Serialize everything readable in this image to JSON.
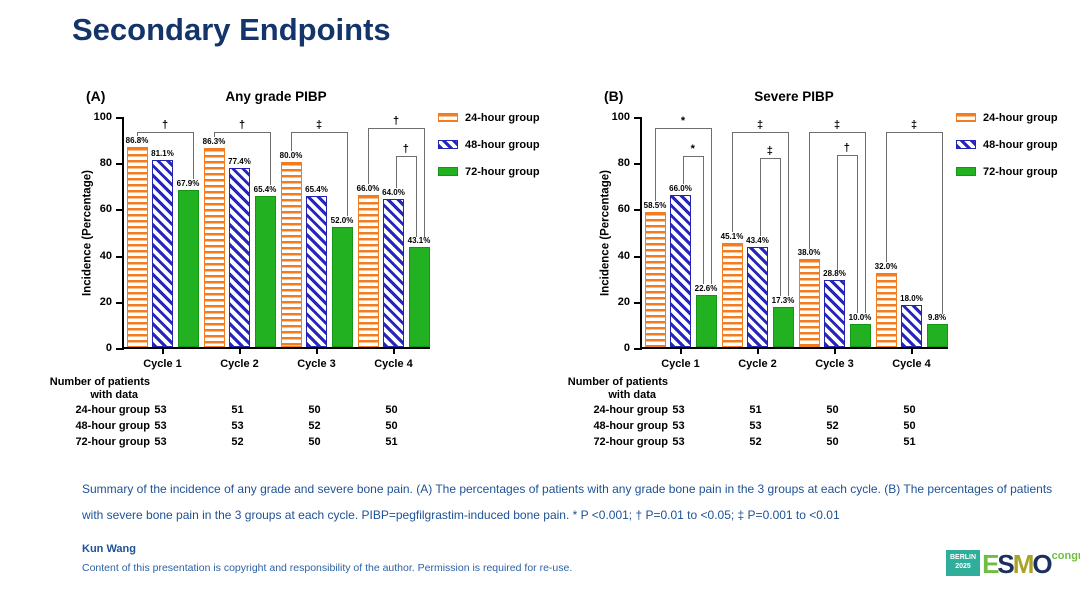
{
  "slide": {
    "title": "Secondary Endpoints",
    "caption": {
      "lines": [
        "Summary of the incidence of any grade and severe bone pain. (A) The percentages of patients with any grade bone pain in the 3 groups at each cycle. (B) The percentages of patients",
        "with severe bone pain in the 3 groups at each cycle. PIBP=pegfilgrastim-induced bone pain. * P <0.001; † P=0.01 to <0.05; ‡ P=0.001 to <0.01"
      ]
    },
    "author": "Kun Wang",
    "copyright": "Content of this presentation is copyright and responsibility of the author. Permission is required for re-use.",
    "logo": {
      "badge_line1": "BERLIN",
      "badge_line2": "2025",
      "brand": "ESMO",
      "suffix": "congress"
    }
  },
  "colors": {
    "title_navy": "#13356b",
    "caption_blue": "#1d5296",
    "group_24h_orange": "#f47c20",
    "group_48h_blue": "#2626bf",
    "group_72h_green": "#21b121",
    "bracket_gray": "#6e6e6e",
    "logo_teal": "#2fae9b",
    "logo_green": "#6fbe44",
    "logo_navy": "#1c2f5e",
    "logo_olive": "#a9a327",
    "brand_letter_colors": [
      "#6fbe44",
      "#1c2f5e",
      "#a9a327",
      "#1c2f5e"
    ]
  },
  "chart_data": [
    {
      "type": "bar",
      "panel_label": "(A)",
      "title": "Any grade PIBP",
      "ylabel": "Incidence (Percentage)",
      "ylim": [
        0,
        100
      ],
      "yticks": [
        0,
        20,
        40,
        60,
        80,
        100
      ],
      "grid": false,
      "legend_position": "right-top",
      "categories": [
        "Cycle 1",
        "Cycle 2",
        "Cycle 3",
        "Cycle 4"
      ],
      "series": [
        {
          "name": "24-hour group",
          "pattern": "orange-horizontal-stripes",
          "values": [
            86.8,
            86.3,
            80.0,
            66.0
          ]
        },
        {
          "name": "48-hour group",
          "pattern": "blue-diagonal-stripes",
          "values": [
            81.1,
            77.4,
            65.4,
            64.0
          ]
        },
        {
          "name": "72-hour group",
          "pattern": "green-solid",
          "values": [
            67.9,
            65.4,
            52.0,
            43.1
          ]
        }
      ],
      "significance": [
        {
          "cycle": 0,
          "from": 0,
          "to": 2,
          "top": 94.0,
          "symbol": "†",
          "inset": false
        },
        {
          "cycle": 1,
          "from": 0,
          "to": 2,
          "top": 94.0,
          "symbol": "†",
          "inset": false
        },
        {
          "cycle": 2,
          "from": 0,
          "to": 2,
          "top": 94.0,
          "symbol": "‡",
          "inset": false
        },
        {
          "cycle": 3,
          "from": 0,
          "to": 2,
          "top": 95.5,
          "symbol": "†",
          "inset": false
        },
        {
          "cycle": 3,
          "from": 1,
          "to": 2,
          "top": 83.5,
          "symbol": "†",
          "inset": true
        }
      ],
      "patients_table": {
        "header_line1": "Number of patients",
        "header_line2": "with data",
        "rows": [
          {
            "label": "24-hour group",
            "values": [
              "53",
              "51",
              "50",
              "50"
            ]
          },
          {
            "label": "48-hour group",
            "values": [
              "53",
              "53",
              "52",
              "50"
            ]
          },
          {
            "label": "72-hour group",
            "values": [
              "53",
              "52",
              "50",
              "51"
            ]
          }
        ]
      }
    },
    {
      "type": "bar",
      "panel_label": "(B)",
      "title": "Severe PIBP",
      "ylabel": "Incidence (Percentage)",
      "ylim": [
        0,
        100
      ],
      "yticks": [
        0,
        20,
        40,
        60,
        80,
        100
      ],
      "grid": false,
      "legend_position": "right-top",
      "categories": [
        "Cycle 1",
        "Cycle 2",
        "Cycle 3",
        "Cycle 4"
      ],
      "series": [
        {
          "name": "24-hour group",
          "pattern": "orange-horizontal-stripes",
          "values": [
            58.5,
            45.1,
            38.0,
            32.0
          ]
        },
        {
          "name": "48-hour group",
          "pattern": "blue-diagonal-stripes",
          "values": [
            66.0,
            43.4,
            28.8,
            18.0
          ]
        },
        {
          "name": "72-hour group",
          "pattern": "green-solid",
          "values": [
            22.6,
            17.3,
            10.0,
            9.8
          ]
        }
      ],
      "significance": [
        {
          "cycle": 0,
          "from": 0,
          "to": 2,
          "top": 95.5,
          "symbol": "*",
          "inset": false
        },
        {
          "cycle": 0,
          "from": 1,
          "to": 2,
          "top": 83.5,
          "symbol": "*",
          "inset": true
        },
        {
          "cycle": 1,
          "from": 0,
          "to": 2,
          "top": 94.0,
          "symbol": "‡",
          "inset": false
        },
        {
          "cycle": 1,
          "from": 1,
          "to": 2,
          "top": 82.5,
          "symbol": "‡",
          "inset": true
        },
        {
          "cycle": 2,
          "from": 0,
          "to": 2,
          "top": 94.0,
          "symbol": "‡",
          "inset": false
        },
        {
          "cycle": 2,
          "from": 1,
          "to": 2,
          "top": 84.0,
          "symbol": "†",
          "inset": true
        },
        {
          "cycle": 3,
          "from": 0,
          "to": 2,
          "top": 94.0,
          "symbol": "‡",
          "inset": false
        }
      ],
      "patients_table": {
        "header_line1": "Number of patients",
        "header_line2": "with data",
        "rows": [
          {
            "label": "24-hour group",
            "values": [
              "53",
              "51",
              "50",
              "50"
            ]
          },
          {
            "label": "48-hour group",
            "values": [
              "53",
              "53",
              "52",
              "50"
            ]
          },
          {
            "label": "72-hour group",
            "values": [
              "53",
              "52",
              "50",
              "51"
            ]
          }
        ]
      }
    }
  ]
}
